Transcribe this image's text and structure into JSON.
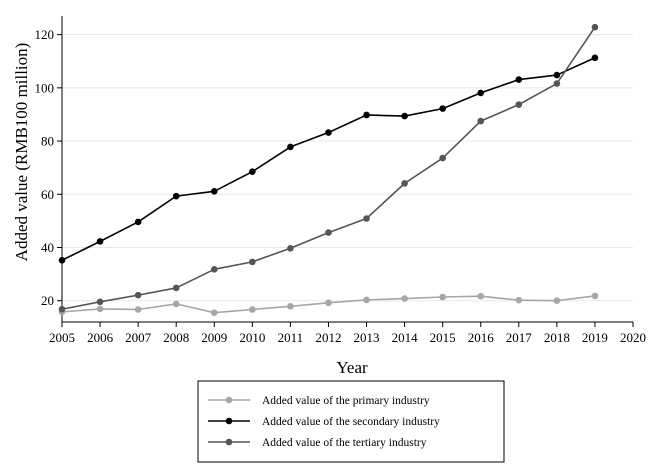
{
  "chart_data": {
    "type": "line",
    "xlabel": "Year",
    "ylabel": "Added value (RMB100 million)",
    "x": [
      2005,
      2006,
      2007,
      2008,
      2009,
      2010,
      2011,
      2012,
      2013,
      2014,
      2015,
      2016,
      2017,
      2018,
      2019
    ],
    "xlim": [
      2005,
      2020
    ],
    "xticks": [
      "2005",
      "2006",
      "2007",
      "2008",
      "2009",
      "2010",
      "2011",
      "2012",
      "2013",
      "2014",
      "2015",
      "2016",
      "2017",
      "2018",
      "2019",
      "2020"
    ],
    "ylim": [
      12,
      127
    ],
    "yticks": [
      "20",
      "40",
      "60",
      "80",
      "100",
      "120"
    ],
    "grid": "horizontal",
    "legend_position": "bottom",
    "series": [
      {
        "name": "Added value of the primary industry",
        "color": "#a6a6a6",
        "values": [
          15.8,
          16.9,
          16.7,
          18.8,
          15.5,
          16.7,
          17.9,
          19.2,
          20.3,
          20.8,
          21.4,
          21.7,
          20.2,
          20.0,
          21.8
        ]
      },
      {
        "name": "Added value of the secondary industry",
        "color": "#000000",
        "values": [
          35.2,
          42.3,
          49.6,
          59.3,
          61.1,
          68.5,
          77.8,
          83.2,
          89.8,
          89.4,
          92.2,
          98.1,
          103.1,
          104.8,
          111.3
        ]
      },
      {
        "name": "Added value of the tertiary industry",
        "color": "#555555",
        "values": [
          16.8,
          19.6,
          22.1,
          24.8,
          31.8,
          34.6,
          39.7,
          45.6,
          50.9,
          64.1,
          73.6,
          87.5,
          93.7,
          101.6,
          122.8
        ]
      }
    ]
  }
}
